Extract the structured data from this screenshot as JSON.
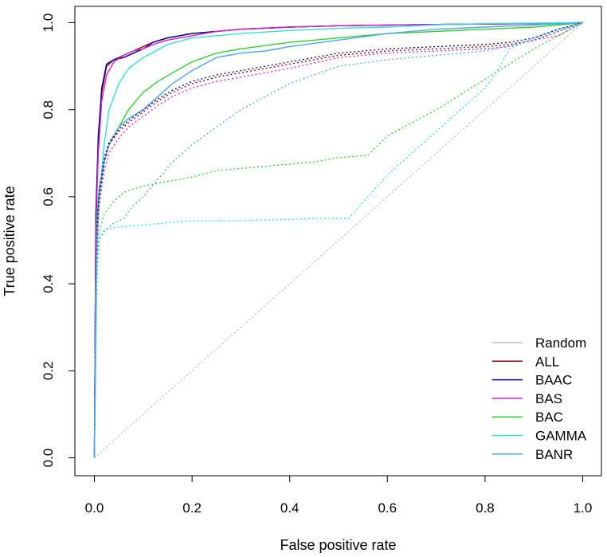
{
  "chart_data": {
    "type": "line",
    "title": "",
    "xlabel": "False positive rate",
    "ylabel": "True positive rate",
    "xlim": [
      0,
      1
    ],
    "ylim": [
      0,
      1
    ],
    "x_ticks": [
      "0.0",
      "0.2",
      "0.4",
      "0.6",
      "0.8",
      "1.0"
    ],
    "y_ticks": [
      "0.0",
      "0.2",
      "0.4",
      "0.6",
      "0.8",
      "1.0"
    ],
    "grid": false,
    "legend_position": "bottom-right",
    "legend": [
      {
        "label": "Random",
        "color": "#bebebe"
      },
      {
        "label": "ALL",
        "color": "#8b0000"
      },
      {
        "label": "BAAC",
        "color": "#00008b"
      },
      {
        "label": "BAS",
        "color": "#e020d0"
      },
      {
        "label": "BAC",
        "color": "#30d030"
      },
      {
        "label": "GAMMA",
        "color": "#30e0e0"
      },
      {
        "label": "BANR",
        "color": "#4fa8e8"
      }
    ],
    "series": [
      {
        "name": "Random",
        "color": "#bebebe",
        "style": "dotted",
        "x": [
          0,
          1
        ],
        "y": [
          0,
          1
        ]
      },
      {
        "name": "ALL",
        "color": "#8b0000",
        "style": "solid",
        "x": [
          0,
          0.003,
          0.008,
          0.015,
          0.025,
          0.04,
          0.06,
          0.08,
          0.1,
          0.12,
          0.15,
          0.2,
          0.25,
          0.3,
          0.4,
          0.5,
          0.7,
          0.9,
          1.0
        ],
        "y": [
          0,
          0.55,
          0.72,
          0.84,
          0.9,
          0.915,
          0.925,
          0.935,
          0.945,
          0.955,
          0.965,
          0.975,
          0.98,
          0.985,
          0.99,
          0.993,
          0.996,
          0.998,
          1.0
        ]
      },
      {
        "name": "BAAC",
        "color": "#00008b",
        "style": "solid",
        "x": [
          0,
          0.003,
          0.008,
          0.015,
          0.025,
          0.04,
          0.06,
          0.08,
          0.1,
          0.12,
          0.15,
          0.2,
          0.25,
          0.3,
          0.4,
          0.5,
          0.7,
          0.9,
          1.0
        ],
        "y": [
          0,
          0.56,
          0.74,
          0.85,
          0.905,
          0.915,
          0.92,
          0.93,
          0.94,
          0.955,
          0.965,
          0.975,
          0.98,
          0.985,
          0.99,
          0.993,
          0.996,
          0.998,
          1.0
        ]
      },
      {
        "name": "BAS",
        "color": "#e020d0",
        "style": "solid",
        "x": [
          0,
          0.003,
          0.008,
          0.015,
          0.025,
          0.04,
          0.06,
          0.08,
          0.1,
          0.12,
          0.15,
          0.2,
          0.25,
          0.3,
          0.4,
          0.5,
          0.7,
          0.9,
          1.0
        ],
        "y": [
          0,
          0.52,
          0.7,
          0.82,
          0.88,
          0.91,
          0.925,
          0.935,
          0.94,
          0.95,
          0.96,
          0.97,
          0.98,
          0.985,
          0.99,
          0.993,
          0.996,
          0.998,
          1.0
        ]
      },
      {
        "name": "BAC",
        "color": "#30d030",
        "style": "solid",
        "x": [
          0,
          0.005,
          0.01,
          0.02,
          0.03,
          0.05,
          0.07,
          0.1,
          0.13,
          0.16,
          0.2,
          0.25,
          0.3,
          0.4,
          0.5,
          0.6,
          0.7,
          0.8,
          0.9,
          1.0
        ],
        "y": [
          0,
          0.55,
          0.62,
          0.68,
          0.72,
          0.76,
          0.8,
          0.84,
          0.865,
          0.885,
          0.91,
          0.93,
          0.94,
          0.955,
          0.965,
          0.975,
          0.98,
          0.985,
          0.99,
          1.0
        ]
      },
      {
        "name": "GAMMA",
        "color": "#30e0e0",
        "style": "solid",
        "x": [
          0,
          0.003,
          0.01,
          0.02,
          0.03,
          0.05,
          0.07,
          0.1,
          0.15,
          0.2,
          0.3,
          0.4,
          0.5,
          0.6,
          0.7,
          0.8,
          0.9,
          1.0
        ],
        "y": [
          0,
          0.4,
          0.6,
          0.72,
          0.8,
          0.86,
          0.895,
          0.92,
          0.95,
          0.965,
          0.975,
          0.982,
          0.987,
          0.99,
          0.995,
          0.998,
          0.999,
          1.0
        ]
      },
      {
        "name": "BANR",
        "color": "#4fa8e8",
        "style": "solid",
        "x": [
          0,
          0.005,
          0.01,
          0.02,
          0.03,
          0.05,
          0.07,
          0.1,
          0.13,
          0.16,
          0.2,
          0.25,
          0.3,
          0.35,
          0.4,
          0.5,
          0.6,
          0.7,
          0.8,
          0.9,
          1.0
        ],
        "y": [
          0,
          0.5,
          0.6,
          0.68,
          0.72,
          0.76,
          0.78,
          0.8,
          0.83,
          0.86,
          0.89,
          0.92,
          0.93,
          0.935,
          0.945,
          0.96,
          0.975,
          0.985,
          0.99,
          0.995,
          1.0
        ]
      },
      {
        "name": "ALL (dotted)",
        "color": "#8b0000",
        "style": "dotted",
        "x": [
          0,
          0.005,
          0.01,
          0.02,
          0.03,
          0.05,
          0.07,
          0.1,
          0.13,
          0.16,
          0.2,
          0.25,
          0.3,
          0.4,
          0.5,
          0.6,
          0.7,
          0.8,
          0.85,
          0.9,
          0.95,
          1.0
        ],
        "y": [
          0,
          0.52,
          0.6,
          0.68,
          0.72,
          0.75,
          0.77,
          0.795,
          0.82,
          0.84,
          0.86,
          0.875,
          0.885,
          0.905,
          0.925,
          0.935,
          0.94,
          0.945,
          0.95,
          0.96,
          0.98,
          1.0
        ]
      },
      {
        "name": "BAAC (dotted)",
        "color": "#00008b",
        "style": "dotted",
        "x": [
          0,
          0.005,
          0.01,
          0.02,
          0.03,
          0.05,
          0.07,
          0.1,
          0.13,
          0.16,
          0.2,
          0.25,
          0.3,
          0.4,
          0.5,
          0.6,
          0.7,
          0.8,
          0.85,
          0.9,
          0.95,
          1.0
        ],
        "y": [
          0,
          0.53,
          0.61,
          0.69,
          0.725,
          0.755,
          0.775,
          0.8,
          0.825,
          0.845,
          0.865,
          0.88,
          0.89,
          0.91,
          0.93,
          0.94,
          0.945,
          0.95,
          0.955,
          0.965,
          0.985,
          1.0
        ]
      },
      {
        "name": "BAS (dotted)",
        "color": "#e020d0",
        "style": "dotted",
        "x": [
          0,
          0.005,
          0.01,
          0.02,
          0.03,
          0.05,
          0.07,
          0.1,
          0.13,
          0.16,
          0.2,
          0.25,
          0.3,
          0.4,
          0.5,
          0.6,
          0.7,
          0.8,
          0.85,
          0.9,
          0.95,
          1.0
        ],
        "y": [
          0,
          0.5,
          0.58,
          0.66,
          0.7,
          0.735,
          0.76,
          0.785,
          0.81,
          0.83,
          0.85,
          0.865,
          0.875,
          0.895,
          0.92,
          0.93,
          0.935,
          0.94,
          0.945,
          0.96,
          0.97,
          1.0
        ]
      },
      {
        "name": "BAC (dotted)",
        "color": "#30d030",
        "style": "dotted",
        "x": [
          0,
          0.005,
          0.01,
          0.02,
          0.04,
          0.06,
          0.1,
          0.15,
          0.2,
          0.25,
          0.3,
          0.35,
          0.4,
          0.45,
          0.5,
          0.56,
          0.6,
          0.7,
          0.8,
          0.9,
          1.0
        ],
        "y": [
          0,
          0.45,
          0.52,
          0.56,
          0.59,
          0.61,
          0.625,
          0.635,
          0.645,
          0.66,
          0.665,
          0.67,
          0.675,
          0.68,
          0.69,
          0.695,
          0.74,
          0.8,
          0.87,
          0.94,
          1.0
        ]
      },
      {
        "name": "GAMMA (dotted)",
        "color": "#30e0e0",
        "style": "dotted",
        "x": [
          0,
          0.005,
          0.01,
          0.02,
          0.05,
          0.1,
          0.15,
          0.2,
          0.3,
          0.4,
          0.45,
          0.52,
          0.6,
          0.7,
          0.8,
          0.82,
          0.85,
          0.9,
          0.95,
          1.0
        ],
        "y": [
          0,
          0.4,
          0.5,
          0.525,
          0.53,
          0.535,
          0.54,
          0.545,
          0.545,
          0.548,
          0.55,
          0.55,
          0.65,
          0.75,
          0.85,
          0.88,
          0.94,
          0.965,
          0.985,
          1.0
        ]
      },
      {
        "name": "BANR (dotted)",
        "color": "#4fa8e8",
        "style": "dotted",
        "x": [
          0,
          0.005,
          0.01,
          0.02,
          0.04,
          0.06,
          0.08,
          0.1,
          0.13,
          0.16,
          0.2,
          0.25,
          0.3,
          0.35,
          0.4,
          0.45,
          0.5,
          0.6,
          0.7,
          0.8,
          0.9,
          1.0
        ],
        "y": [
          0,
          0.45,
          0.5,
          0.52,
          0.54,
          0.55,
          0.58,
          0.6,
          0.64,
          0.68,
          0.72,
          0.76,
          0.8,
          0.83,
          0.86,
          0.88,
          0.9,
          0.915,
          0.925,
          0.935,
          0.96,
          1.0
        ]
      }
    ]
  }
}
